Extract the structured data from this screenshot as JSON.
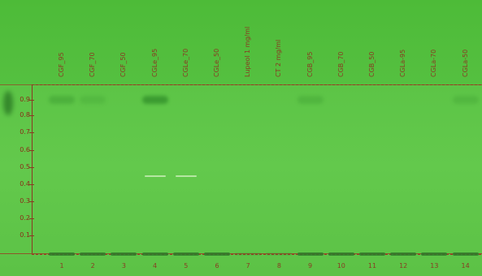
{
  "lanes": [
    {
      "label": "CGF_95",
      "number": "1"
    },
    {
      "label": "CGF_70",
      "number": "2"
    },
    {
      "label": "CGF_50",
      "number": "3"
    },
    {
      "label": "CGLe_95",
      "number": "4"
    },
    {
      "label": "CGLe_70",
      "number": "5"
    },
    {
      "label": "CGLe_50",
      "number": "6"
    },
    {
      "label": "Lupeol 1 mg/ml",
      "number": "7"
    },
    {
      "label": "CT 2 mg/ml",
      "number": "8"
    },
    {
      "label": "CGB_95",
      "number": "9"
    },
    {
      "label": "CGB_70",
      "number": "10"
    },
    {
      "label": "CGB_50",
      "number": "11"
    },
    {
      "label": "CGLa-95",
      "number": "12"
    },
    {
      "label": "CGLa-70",
      "number": "13"
    },
    {
      "label": "CGLa-50",
      "number": "14"
    }
  ],
  "rf_ticks": [
    "0.9",
    "0.8",
    "0.7",
    "0.6",
    "0.5",
    "0.4",
    "0.3",
    "0.2",
    "0.1"
  ],
  "colors": {
    "plate": "#5cc446",
    "marker": "#9a3a22"
  }
}
